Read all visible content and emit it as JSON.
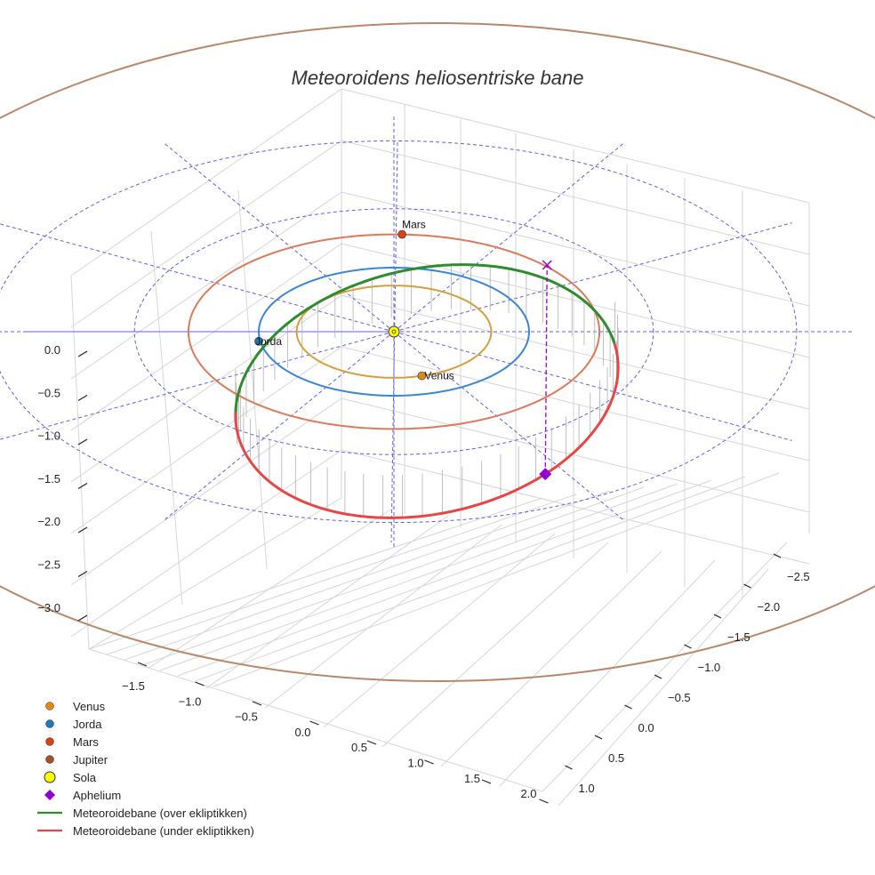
{
  "chart_data": {
    "type": "line",
    "title": "Meteoroidens heliosentriske bane",
    "x_ticks": [
      "−1.5",
      "−1.0",
      "−0.5",
      "0.0",
      "0.5",
      "1.0",
      "1.5",
      "2.0"
    ],
    "y_ticks": [
      "−2.5",
      "−2.0",
      "−1.5",
      "−1.0",
      "−0.5",
      "0.0",
      "0.5",
      "1.0"
    ],
    "z_ticks": [
      "0.0",
      "−0.5",
      "−1.0",
      "−1.5",
      "−2.0",
      "−2.5",
      "−3.0"
    ],
    "planets": [
      {
        "name": "Venus",
        "label": "Venus",
        "orbit_radius": 0.72,
        "color": "#d4a03c",
        "marker": "#d98b1a"
      },
      {
        "name": "Jorda",
        "label": "Jorda",
        "orbit_radius": 1.0,
        "color": "#3a86d4",
        "marker": "#1f77b4"
      },
      {
        "name": "Mars",
        "label": "Mars",
        "orbit_radius": 1.52,
        "color": "#dc7a5a",
        "marker": "#d1451b"
      },
      {
        "name": "Jupiter",
        "label": "",
        "orbit_radius": 5.2,
        "color": "#b8876a",
        "marker": "#a0522d"
      }
    ],
    "sun": {
      "name": "Sola",
      "color": "#ffff00"
    },
    "aphelion": {
      "name": "Aphelium",
      "color": "#9400d3"
    },
    "series": [
      {
        "name": "Meteoroidebane (over ekliptikken)",
        "color": "#2e8b2e"
      },
      {
        "name": "Meteoroidebane (under ekliptikken)",
        "color": "#e84545"
      }
    ],
    "grid": true,
    "legend_position": "bottom-left"
  },
  "legend": [
    {
      "label": "Venus"
    },
    {
      "label": "Jorda"
    },
    {
      "label": "Mars"
    },
    {
      "label": "Jupiter"
    },
    {
      "label": "Sola"
    },
    {
      "label": "Aphelium"
    },
    {
      "label": "Meteoroidebane (over ekliptikken)"
    },
    {
      "label": "Meteoroidebane (under ekliptikken)"
    }
  ]
}
